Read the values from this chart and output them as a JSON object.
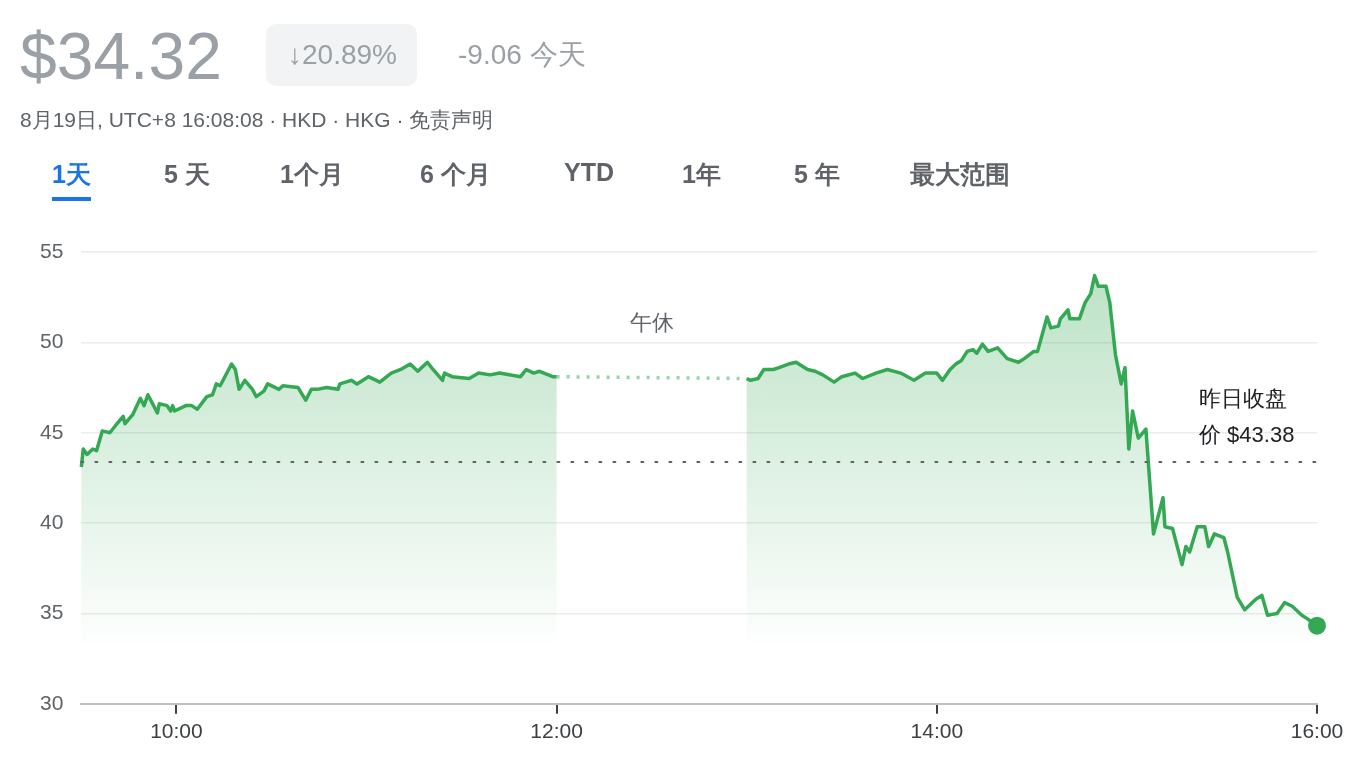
{
  "chart_data": {
    "type": "area",
    "title": "$34.32",
    "subtitle": "8月19日, UTC+8 16:08:08 · HKD · HKG · 免责声明",
    "annotations": [
      "↓20.89%",
      "-9.06 今天",
      "1天",
      "5 天",
      "1个月",
      "6 个月",
      "YTD",
      "1年",
      "5 年",
      "最大范围",
      "午休"
    ],
    "x": [
      9.5,
      9.51,
      9.53,
      9.56,
      9.58,
      9.61,
      9.65,
      9.68,
      9.72,
      9.73,
      9.77,
      9.81,
      9.83,
      9.85,
      9.9,
      9.91,
      9.95,
      9.97,
      9.98,
      9.99,
      10.05,
      10.08,
      10.11,
      10.16,
      10.19,
      10.21,
      10.23,
      10.29,
      10.31,
      10.33,
      10.36,
      10.4,
      10.42,
      10.46,
      10.48,
      10.54,
      10.56,
      10.64,
      10.68,
      10.71,
      10.74,
      10.79,
      10.85,
      10.86,
      10.92,
      10.95,
      11.01,
      11.07,
      11.13,
      11.18,
      11.23,
      11.27,
      11.32,
      11.35,
      11.4,
      11.41,
      11.45,
      11.54,
      11.59,
      11.65,
      11.7,
      11.81,
      11.84,
      11.88,
      11.91,
      11.98,
      12.0,
      12.5,
      13.0,
      13.02,
      13.06,
      13.09,
      13.14,
      13.17,
      13.22,
      13.26,
      13.32,
      13.36,
      13.4,
      13.46,
      13.5,
      13.57,
      13.61,
      13.68,
      13.74,
      13.81,
      13.88,
      13.94,
      14.0,
      14.03,
      14.07,
      14.1,
      14.13,
      14.16,
      14.19,
      14.21,
      14.24,
      14.27,
      14.32,
      14.37,
      14.43,
      14.46,
      14.51,
      14.53,
      14.58,
      14.6,
      14.64,
      14.65,
      14.69,
      14.7,
      14.75,
      14.78,
      14.81,
      14.83,
      14.85,
      14.89,
      14.91,
      14.94,
      14.97,
      14.99,
      15.01,
      15.03,
      15.06,
      15.1,
      15.14,
      15.19,
      15.2,
      15.24,
      15.29,
      15.31,
      15.33,
      15.37,
      15.41,
      15.43,
      15.46,
      15.51,
      15.53,
      15.58,
      15.62,
      15.66,
      15.68,
      15.71,
      15.74,
      15.79,
      15.83,
      15.87,
      15.92,
      15.95,
      16.0
    ],
    "series": [
      {
        "color": "#34a853",
        "values": [
          43.1,
          44.1,
          43.8,
          44.1,
          44.0,
          45.1,
          45.0,
          45.4,
          45.9,
          45.5,
          46.0,
          46.9,
          46.5,
          47.1,
          46.1,
          46.6,
          46.5,
          46.2,
          46.5,
          46.2,
          46.5,
          46.5,
          46.3,
          47.0,
          47.1,
          47.7,
          47.6,
          48.8,
          48.5,
          47.4,
          47.9,
          47.4,
          47.0,
          47.3,
          47.7,
          47.4,
          47.6,
          47.5,
          46.8,
          47.4,
          47.4,
          47.5,
          47.4,
          47.7,
          47.9,
          47.7,
          48.1,
          47.8,
          48.3,
          48.5,
          48.8,
          48.4,
          48.9,
          48.5,
          47.9,
          48.3,
          48.1,
          48.0,
          48.3,
          48.2,
          48.3,
          48.1,
          48.5,
          48.3,
          48.4,
          48.1,
          48.1,
          null,
          48.0,
          47.9,
          48.0,
          48.5,
          48.5,
          48.6,
          48.8,
          48.9,
          48.5,
          48.4,
          48.2,
          47.8,
          48.1,
          48.3,
          48.0,
          48.3,
          48.5,
          48.3,
          47.9,
          48.3,
          48.3,
          47.9,
          48.5,
          48.8,
          49.0,
          49.5,
          49.6,
          49.4,
          49.9,
          49.5,
          49.7,
          49.1,
          48.9,
          49.1,
          49.5,
          49.5,
          51.4,
          50.8,
          50.9,
          51.3,
          51.8,
          51.3,
          51.3,
          52.2,
          52.7,
          53.7,
          53.1,
          53.1,
          52.2,
          49.3,
          47.7,
          48.6,
          44.1,
          46.2,
          44.7,
          45.2,
          39.4,
          41.4,
          39.8,
          39.7,
          37.7,
          38.7,
          38.4,
          39.8,
          39.8,
          38.7,
          39.4,
          39.2,
          38.4,
          35.9,
          35.2,
          35.6,
          35.8,
          36.0,
          34.9,
          35.0,
          35.6,
          35.4,
          34.9,
          34.7,
          34.32
        ]
      }
    ],
    "xlim": [
      9.5,
      16
    ],
    "xticks": [
      {
        "value": 10,
        "label": "10:00"
      },
      {
        "value": 12,
        "label": "12:00"
      },
      {
        "value": 14,
        "label": "14:00"
      },
      {
        "value": 16,
        "label": "16:00"
      }
    ],
    "ylim": [
      30,
      55
    ],
    "yticks": [
      30,
      35,
      40,
      45,
      50,
      55
    ],
    "grid": "y",
    "ref_lines": [
      {
        "axis": "y",
        "value": 43.38,
        "label": "昨日收盘价 $43.38",
        "line_style": "dotted"
      }
    ]
  }
}
